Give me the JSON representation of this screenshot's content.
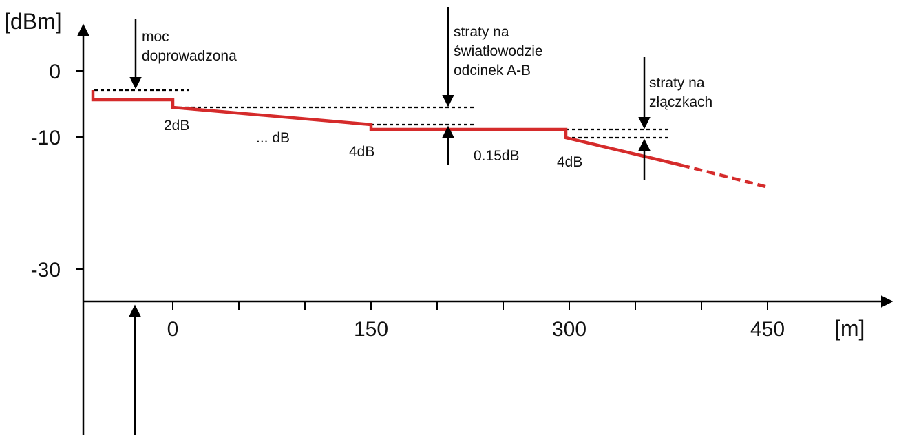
{
  "colors": {
    "trace": "#d52b2b",
    "ink": "#000000"
  },
  "axes": {
    "y_unit": "[dBm]",
    "x_unit": "[m]",
    "y_ticks": [
      "0",
      "-10",
      "-30"
    ],
    "x_ticks": [
      "0",
      "150",
      "300",
      "450"
    ]
  },
  "annotations": {
    "input_power": [
      "moc",
      "doprowadzona"
    ],
    "fiber_loss": [
      "straty na",
      "światłowodzie",
      "odcinek A-B"
    ],
    "connector_loss": [
      "straty na",
      "złączkach"
    ]
  },
  "values": {
    "step1": "2dB",
    "slope": "... dB",
    "step2": "4dB",
    "flat": "0.15dB",
    "step3": "4dB"
  }
}
